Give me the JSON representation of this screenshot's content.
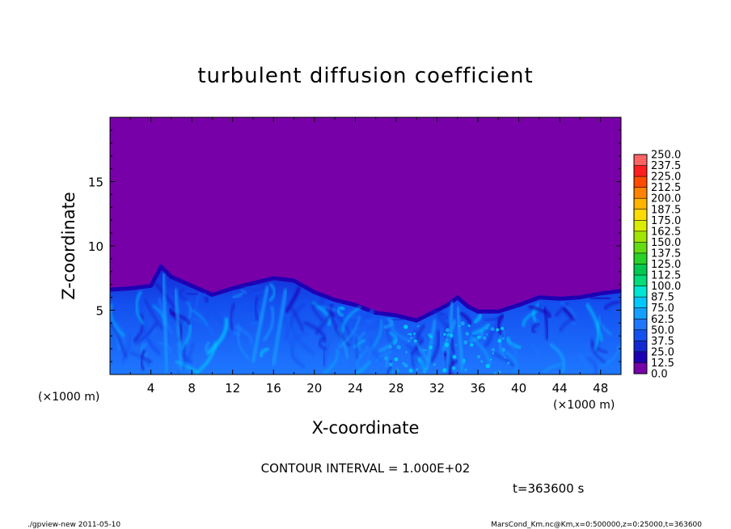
{
  "chart_data": {
    "type": "heatmap",
    "title": "turbulent diffusion coefficient",
    "xlabel": "X-coordinate",
    "ylabel": "Z-coordinate",
    "x_unit": "(×1000 m)",
    "y_unit": "(×1000 m)",
    "xlim": [
      0,
      50
    ],
    "ylim": [
      0,
      20
    ],
    "x_ticks": [
      4,
      8,
      12,
      16,
      20,
      24,
      28,
      32,
      36,
      40,
      44,
      48
    ],
    "y_ticks": [
      5,
      10,
      15
    ],
    "colorbar": {
      "levels": [
        "0.0",
        "12.5",
        "25.0",
        "37.5",
        "50.0",
        "62.5",
        "75.0",
        "87.5",
        "100.0",
        "112.5",
        "125.0",
        "137.5",
        "150.0",
        "162.5",
        "175.0",
        "187.5",
        "200.0",
        "212.5",
        "225.0",
        "237.5",
        "250.0"
      ],
      "colors": [
        "#7800a8",
        "#1e00b4",
        "#1428d2",
        "#1450f0",
        "#1e78ff",
        "#14a0ff",
        "#00c8ff",
        "#00e6d2",
        "#00dc78",
        "#00c850",
        "#28d228",
        "#64dc14",
        "#a0e600",
        "#dcec00",
        "#ffdc00",
        "#ffb400",
        "#ff8200",
        "#ff4b00",
        "#ff1e1e",
        "#ff6464"
      ]
    },
    "contour_interval": "CONTOUR INTERVAL = 1.000E+02",
    "time_label": "t=363600 s",
    "boundary_layer_top": {
      "x": [
        0,
        2,
        4,
        5,
        6,
        8,
        10,
        12,
        14,
        16,
        18,
        20,
        22,
        24,
        26,
        28,
        30,
        32,
        33,
        34,
        35,
        36,
        38,
        40,
        42,
        44,
        46,
        48,
        50
      ],
      "z": [
        6.6,
        6.7,
        6.9,
        8.4,
        7.6,
        6.9,
        6.2,
        6.7,
        7.1,
        7.5,
        7.3,
        6.4,
        5.8,
        5.4,
        4.8,
        4.6,
        4.2,
        5.0,
        5.4,
        6.0,
        5.3,
        4.9,
        4.9,
        5.4,
        6.0,
        5.9,
        6.0,
        6.3,
        6.5
      ]
    }
  },
  "footer": {
    "left": "./gpview-new   2011-05-10",
    "right": "MarsCond_Km.nc@Km,x=0:500000,z=0:25000,t=363600"
  }
}
